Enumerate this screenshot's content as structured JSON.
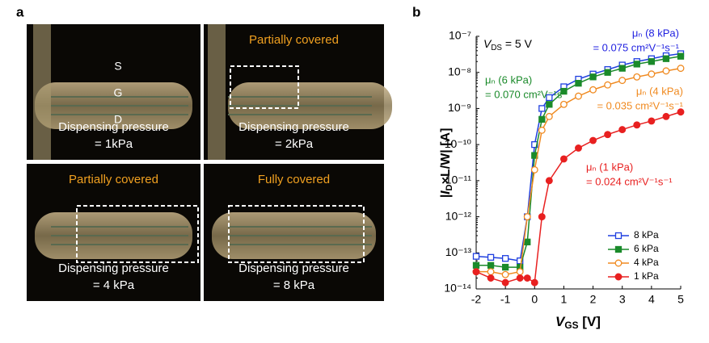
{
  "panel_a": {
    "label": "a",
    "images": [
      {
        "caption": [
          "Dispensing pressure",
          "= 1kPa"
        ],
        "terminals": [
          "S",
          "G",
          "D"
        ]
      },
      {
        "title": "Partially covered",
        "caption": [
          "Dispensing pressure",
          "= 2kPa"
        ]
      },
      {
        "title": "Partially covered",
        "caption": [
          "Dispensing pressure",
          "= 4 kPa"
        ]
      },
      {
        "title": "Fully covered",
        "caption": [
          "Dispensing pressure",
          "= 8 kPa"
        ]
      }
    ]
  },
  "chart_data": {
    "type": "line",
    "label": "b",
    "x_label": [
      "V",
      "GS",
      " [V]"
    ],
    "y_label": [
      "|I",
      "D",
      "×L/W| [A]"
    ],
    "log_y": true,
    "xlim": [
      -2,
      5
    ],
    "xticks": [
      -2,
      -1,
      0,
      1,
      2,
      3,
      4,
      5
    ],
    "ylim": [
      1e-14,
      1e-07
    ],
    "yticks": [
      {
        "value": 1e-14,
        "label": "10⁻¹⁴"
      },
      {
        "value": 1e-13,
        "label": "10⁻¹³"
      },
      {
        "value": 1e-12,
        "label": "10⁻¹²"
      },
      {
        "value": 1e-11,
        "label": "10⁻¹¹"
      },
      {
        "value": 1e-10,
        "label": "10⁻¹⁰"
      },
      {
        "value": 1e-09,
        "label": "10⁻⁹"
      },
      {
        "value": 1e-08,
        "label": "10⁻⁸"
      },
      {
        "value": 1e-07,
        "label": "10⁻⁷"
      }
    ],
    "legend": "lower-right",
    "x": [
      -2,
      -1.5,
      -1,
      -0.5,
      -0.25,
      0,
      0.25,
      0.5,
      1,
      1.5,
      2,
      2.5,
      3,
      3.5,
      4,
      4.5,
      5
    ],
    "series": [
      {
        "name": "8 kPa",
        "color": "#1f3fe0",
        "marker": "square-open",
        "values": [
          8e-14,
          7.5e-14,
          7e-14,
          6e-14,
          1e-12,
          1e-10,
          1e-09,
          2e-09,
          4e-09,
          6.5e-09,
          9e-09,
          1.2e-08,
          1.6e-08,
          2e-08,
          2.4e-08,
          2.9e-08,
          3.3e-08
        ]
      },
      {
        "name": "6 kPa",
        "color": "#1a8a2a",
        "marker": "square",
        "values": [
          4.5e-14,
          4.5e-14,
          4e-14,
          4e-14,
          2e-13,
          5e-11,
          5e-10,
          1.3e-09,
          3e-09,
          5e-09,
          7.5e-09,
          1e-08,
          1.3e-08,
          1.7e-08,
          2e-08,
          2.4e-08,
          2.8e-08
        ]
      },
      {
        "name": "4 kPa",
        "color": "#f08a20",
        "marker": "circle-open",
        "values": [
          3e-14,
          3e-14,
          2.5e-14,
          3e-14,
          1e-12,
          2e-11,
          2.5e-10,
          6e-10,
          1.3e-09,
          2.2e-09,
          3.3e-09,
          4.5e-09,
          6e-09,
          7.5e-09,
          9e-09,
          1.1e-08,
          1.3e-08
        ]
      },
      {
        "name": "1 kPa",
        "color": "#e82020",
        "marker": "circle",
        "values": [
          3e-14,
          2e-14,
          1.5e-14,
          2e-14,
          2e-14,
          1.5e-14,
          1e-12,
          1e-11,
          4e-11,
          8e-11,
          1.3e-10,
          1.9e-10,
          2.6e-10,
          3.5e-10,
          4.5e-10,
          6e-10,
          8e-10
        ]
      }
    ],
    "annotations": [
      {
        "parts": [
          "V",
          "DS",
          " = 5 V"
        ],
        "color": "#000000"
      },
      {
        "lines": [
          "μₙ (8 kPa)",
          "= 0.075 cm²V⁻¹s⁻¹"
        ],
        "color": "#1f1fe0"
      },
      {
        "lines": [
          "μₙ (6 kPa)",
          "= 0.070 cm²V⁻¹s"
        ],
        "color": "#1a8a2a"
      },
      {
        "lines": [
          "μₙ (4 kPa)",
          "= 0.035 cm²V⁻¹s⁻¹"
        ],
        "color": "#f08a20"
      },
      {
        "lines": [
          "μₙ (1 kPa)",
          "= 0.024 cm²V⁻¹s⁻¹"
        ],
        "color": "#e82020"
      }
    ]
  }
}
